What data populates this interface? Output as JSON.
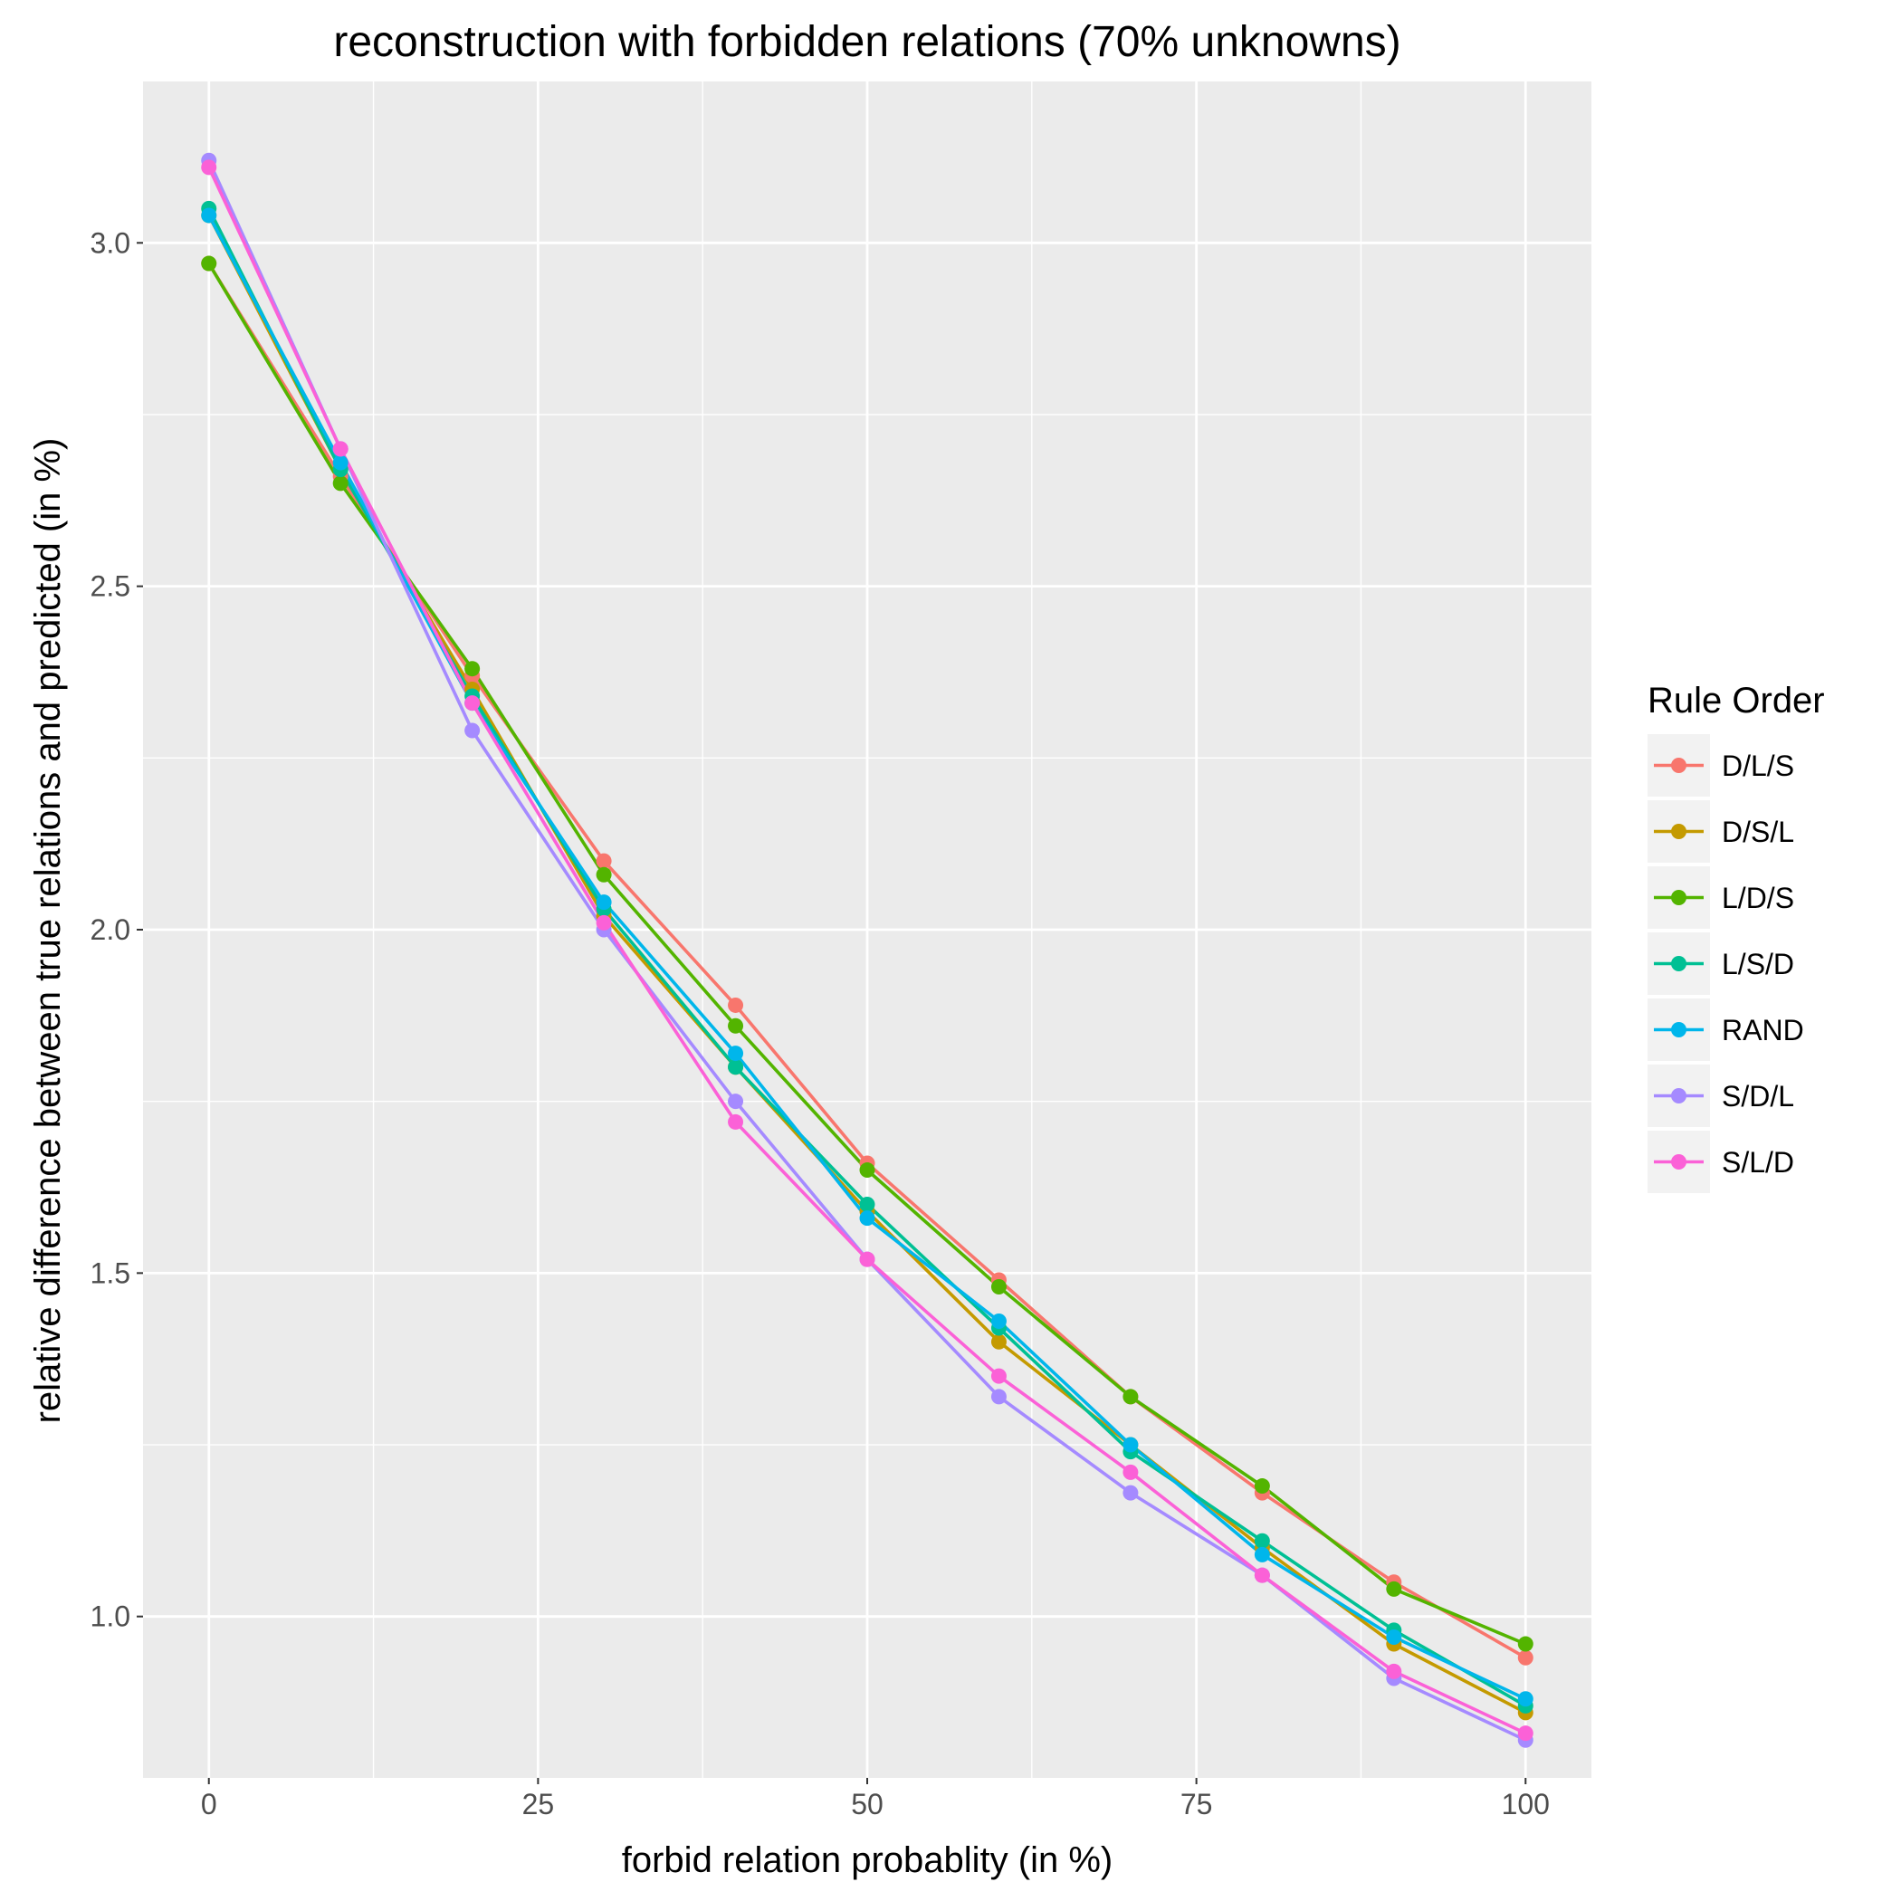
{
  "chart_data": {
    "type": "line",
    "title": "reconstruction with forbidden relations (70% unknowns)",
    "xlabel": "forbid relation probablity (in %)",
    "ylabel": "relative difference between true relations and predicted (in %)",
    "x": [
      0,
      10,
      20,
      30,
      40,
      50,
      60,
      70,
      80,
      90,
      100
    ],
    "xlim": [
      -5,
      105
    ],
    "ylim": [
      0.765,
      3.235
    ],
    "x_ticks": [
      "0",
      "25",
      "50",
      "75",
      "100"
    ],
    "y_ticks": [
      "1.0",
      "1.5",
      "2.0",
      "2.5",
      "3.0"
    ],
    "grid": true,
    "legend": {
      "title": "Rule Order",
      "position": "right"
    },
    "series": [
      {
        "name": "D/L/S",
        "color": "#F8766D",
        "values": [
          2.97,
          2.66,
          2.37,
          2.1,
          1.89,
          1.66,
          1.49,
          1.32,
          1.18,
          1.05,
          0.94
        ]
      },
      {
        "name": "D/S/L",
        "color": "#C49A00",
        "values": [
          3.04,
          2.67,
          2.35,
          2.02,
          1.8,
          1.59,
          1.4,
          1.25,
          1.1,
          0.96,
          0.86
        ]
      },
      {
        "name": "L/D/S",
        "color": "#53B400",
        "values": [
          2.97,
          2.65,
          2.38,
          2.08,
          1.86,
          1.65,
          1.48,
          1.32,
          1.19,
          1.04,
          0.96
        ]
      },
      {
        "name": "L/S/D",
        "color": "#00C094",
        "values": [
          3.05,
          2.67,
          2.34,
          2.03,
          1.8,
          1.6,
          1.42,
          1.24,
          1.11,
          0.98,
          0.87
        ]
      },
      {
        "name": "RAND",
        "color": "#00B6EB",
        "values": [
          3.04,
          2.68,
          2.33,
          2.04,
          1.82,
          1.58,
          1.43,
          1.25,
          1.09,
          0.97,
          0.88
        ]
      },
      {
        "name": "S/D/L",
        "color": "#A58AFF",
        "values": [
          3.12,
          2.7,
          2.29,
          2.0,
          1.75,
          1.52,
          1.32,
          1.18,
          1.06,
          0.91,
          0.82
        ]
      },
      {
        "name": "S/L/D",
        "color": "#FB61D7",
        "values": [
          3.11,
          2.7,
          2.33,
          2.01,
          1.72,
          1.52,
          1.35,
          1.21,
          1.06,
          0.92,
          0.83
        ]
      }
    ]
  }
}
